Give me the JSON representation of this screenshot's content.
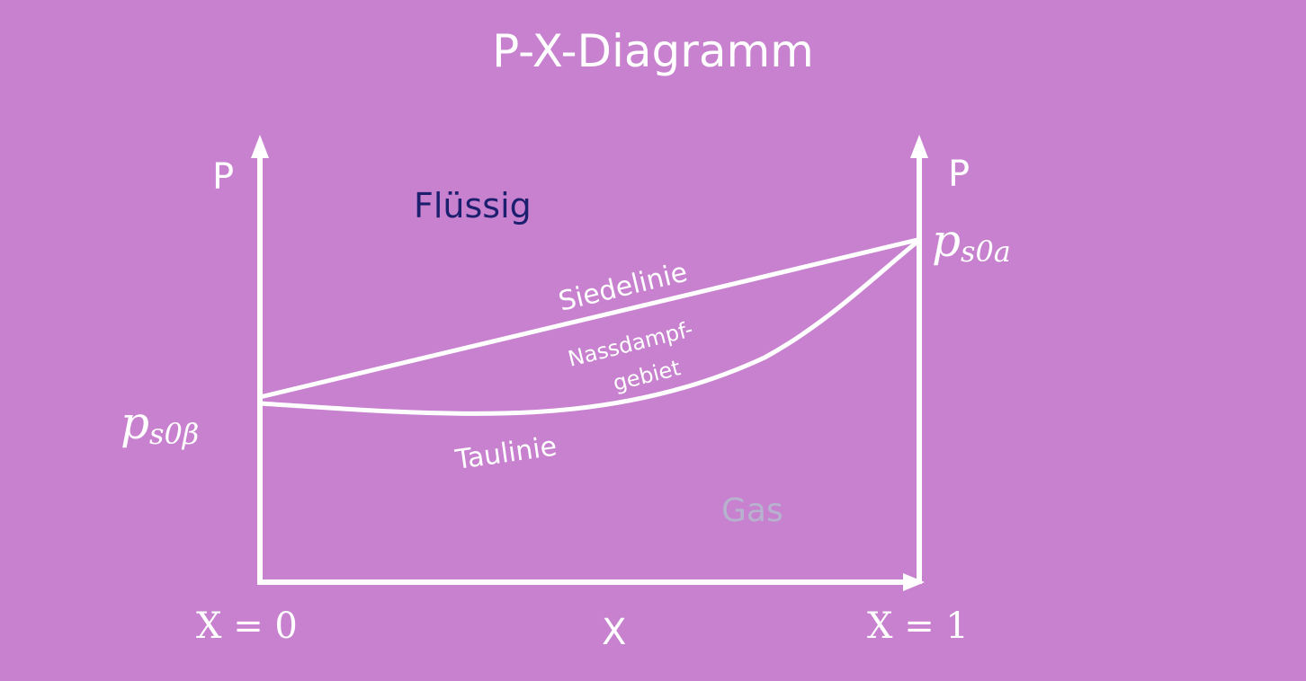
{
  "title": "P-X-Diagramm",
  "axes": {
    "y_left_label": "P",
    "y_right_label": "P",
    "x_label": "X",
    "x_left_tick": "X = 0",
    "x_right_tick": "X = 1",
    "p_left_main": "p",
    "p_left_sub": "s0β",
    "p_right_main": "p",
    "p_right_sub": "s0a"
  },
  "regions": {
    "liquid": "Flüssig",
    "gas": "Gas",
    "wet_steam_line1": "Nassdampf-",
    "wet_steam_line2": "gebiet"
  },
  "curves": {
    "boiling_line": "Siedelinie",
    "dew_line": "Taulinie"
  },
  "colors": {
    "background": "#c781cf",
    "line": "#ffffff",
    "liquid_text": "#1c1f6e",
    "gas_text": "#b7b3cf"
  }
}
